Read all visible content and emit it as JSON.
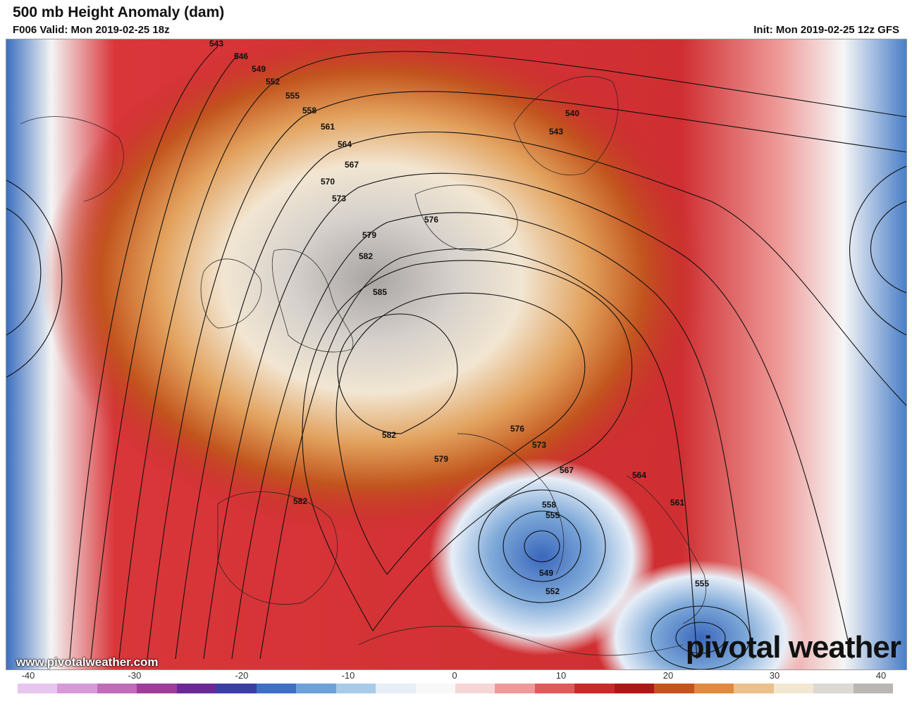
{
  "header": {
    "title": "500 mb Height Anomaly (dam)",
    "valid": "F006 Valid: Mon 2019-02-25 18z",
    "init": "Init: Mon 2019-02-25 12z GFS"
  },
  "watermark": {
    "url": "www.pivotalweather.com",
    "logo": "pivotal weather"
  },
  "contour_labels": [
    "543",
    "546",
    "549",
    "552",
    "555",
    "558",
    "561",
    "564",
    "567",
    "570",
    "573",
    "576",
    "579",
    "582",
    "585",
    "540",
    "543",
    "576",
    "573",
    "567",
    "564",
    "561",
    "582",
    "579",
    "582",
    "558",
    "555",
    "549",
    "552",
    "555"
  ],
  "colorbar": {
    "ticks": [
      "-40",
      "-30",
      "-20",
      "-10",
      "0",
      "10",
      "20",
      "30",
      "40"
    ],
    "colors": [
      "#e6c6ee",
      "#d59ad8",
      "#c06bb8",
      "#9e3e9a",
      "#6b2a93",
      "#3b3ea5",
      "#3f6fc4",
      "#6da1d8",
      "#a8cbe9",
      "#e8eef6",
      "#f8f8f8",
      "#f7d6d6",
      "#ee9a9a",
      "#e05a5a",
      "#cc2a2a",
      "#b01818",
      "#c8521e",
      "#df8a3e",
      "#ecc08a",
      "#f3e7d2",
      "#dcd8d4",
      "#b9b6b4"
    ]
  }
}
